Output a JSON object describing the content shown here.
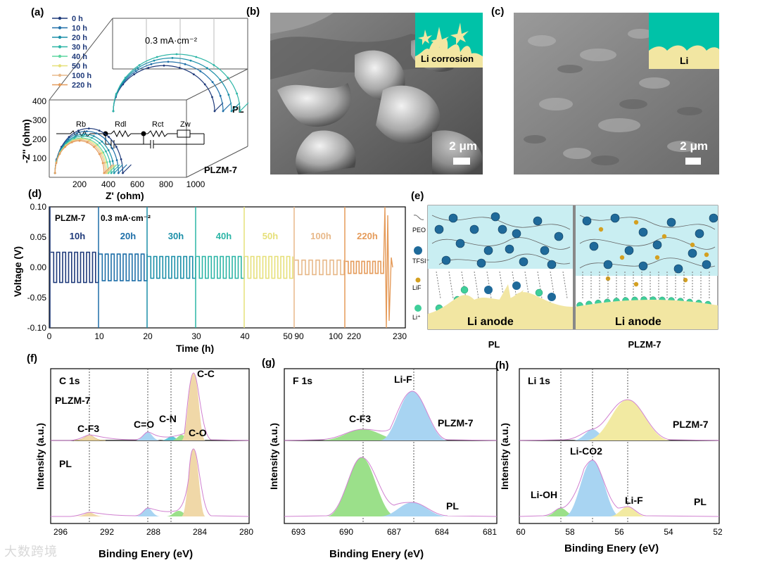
{
  "panel_labels": {
    "a": "(a)",
    "b": "(b)",
    "c": "(c)",
    "d": "(d)",
    "e": "(e)",
    "f": "(f)",
    "g": "(g)",
    "h": "(h)"
  },
  "colors": {
    "0h": "#1f3a7a",
    "10h": "#1e6fa8",
    "20h": "#1b8fa8",
    "30h": "#2cb5a6",
    "40h": "#5fd6a0",
    "50h": "#e6e07a",
    "100h": "#e8b98a",
    "220h": "#e59b5a",
    "blue_fill": "#a8d4f2",
    "green_fill": "#9be08a",
    "tan_fill": "#f0d8a8",
    "yellow_fill": "#f2eaa2",
    "teal": "#00c2a8",
    "sand": "#f2e6a2",
    "electrolyte": "#c9eef2"
  },
  "chart_data": [
    {
      "type": "line",
      "id": "a",
      "title": "0.3 mA·cm⁻²",
      "xlabel": "Z' (ohm)",
      "ylabel": "-Z'' (ohm)",
      "xticks": [
        200,
        400,
        600,
        800,
        1000
      ],
      "yticks": [
        100,
        200,
        300,
        400
      ],
      "legend": [
        "0 h",
        "10 h",
        "20 h",
        "30 h",
        "40 h",
        "50 h",
        "100 h",
        "220 h"
      ],
      "group_labels": [
        "PL",
        "PLZM-7"
      ],
      "circuit_labels": [
        "Rb",
        "Rdl",
        "Rct",
        "Zw"
      ],
      "series_plzm7": [
        {
          "name": "0 h",
          "rb": 30,
          "r": 470
        },
        {
          "name": "10 h",
          "rb": 30,
          "r": 440
        },
        {
          "name": "20 h",
          "rb": 30,
          "r": 410
        },
        {
          "name": "30 h",
          "rb": 30,
          "r": 390
        },
        {
          "name": "40 h",
          "rb": 30,
          "r": 370
        },
        {
          "name": "50 h",
          "rb": 30,
          "r": 360
        },
        {
          "name": "100 h",
          "rb": 30,
          "r": 350
        },
        {
          "name": "220 h",
          "rb": 30,
          "r": 340
        }
      ],
      "series_pl": [
        {
          "name": "0 h",
          "rb": 30,
          "r": 480
        },
        {
          "name": "10 h",
          "rb": 30,
          "r": 520
        },
        {
          "name": "20 h",
          "rb": 30,
          "r": 560
        },
        {
          "name": "30 h",
          "rb": 30,
          "r": 600
        }
      ]
    },
    {
      "type": "line",
      "id": "d",
      "xlabel": "Time (h)",
      "ylabel": "Voltage (V)",
      "sample": "PLZM-7",
      "current": "0.3 mA·cm⁻²",
      "ylim": [
        -0.1,
        0.1
      ],
      "yticks": [
        "0.10",
        "0.05",
        "0.00",
        "-0.05",
        "-0.10"
      ],
      "xticks": [
        "0",
        "10",
        "20",
        "30",
        "40",
        "50",
        "90",
        "100",
        "220",
        "230"
      ],
      "segments": [
        {
          "label": "10h",
          "amp": 0.025
        },
        {
          "label": "20h",
          "amp": 0.022
        },
        {
          "label": "30h",
          "amp": 0.018
        },
        {
          "label": "40h",
          "amp": 0.018
        },
        {
          "label": "50h",
          "amp": 0.018
        },
        {
          "label": "100h",
          "amp": 0.012
        },
        {
          "label": "220h",
          "amp": 0.01
        }
      ]
    },
    {
      "type": "line",
      "id": "f",
      "panel_title": "C 1s",
      "xlabel": "Binding Enery (eV)",
      "ylabel": "Intensity (a.u.)",
      "xlim": [
        296,
        280
      ],
      "xticks": [
        "296",
        "292",
        "288",
        "284",
        "280"
      ],
      "samples": [
        "PLZM-7",
        "PL"
      ],
      "peaks": [
        {
          "label": "C-F3",
          "be": 293.0
        },
        {
          "label": "C=O",
          "be": 288.8
        },
        {
          "label": "C-N",
          "be": 286.8
        },
        {
          "label": "C-C",
          "be": 284.8
        },
        {
          "label": "C-O",
          "be": 285.6
        }
      ]
    },
    {
      "type": "line",
      "id": "g",
      "panel_title": "F 1s",
      "xlabel": "Binding Enery (eV)",
      "ylabel": "Intensity (a.u.)",
      "xlim": [
        693,
        681
      ],
      "xticks": [
        "693",
        "690",
        "687",
        "684",
        "681"
      ],
      "samples": [
        "PLZM-7",
        "PL"
      ],
      "peaks": [
        {
          "label": "C-F3",
          "be": 688.8
        },
        {
          "label": "Li-F",
          "be": 685.4
        }
      ]
    },
    {
      "type": "line",
      "id": "h",
      "panel_title": "Li 1s",
      "xlabel": "Binding Enery (eV)",
      "ylabel": "Intensity (a.u.)",
      "xlim": [
        60,
        52
      ],
      "xticks": [
        "60",
        "58",
        "56",
        "54",
        "52"
      ],
      "samples": [
        "PLZM-7",
        "PL"
      ],
      "peaks": [
        {
          "label": "Li-OH",
          "be": 58.4
        },
        {
          "label": "Li-CO2",
          "be": 57.1
        },
        {
          "label": "Li-F",
          "be": 55.7
        }
      ]
    }
  ],
  "sem": {
    "b": {
      "inset_label": "Li corrosion",
      "scale": "2 μm"
    },
    "c": {
      "inset_label": "Li",
      "scale": "2 μm"
    }
  },
  "schematic": {
    "legend": [
      "PEO",
      "TFSI⁻",
      "LiF",
      "Li⁺"
    ],
    "anode_label": "Li anode",
    "captions": [
      "PL",
      "PLZM-7"
    ]
  },
  "watermark": "大数跨境"
}
